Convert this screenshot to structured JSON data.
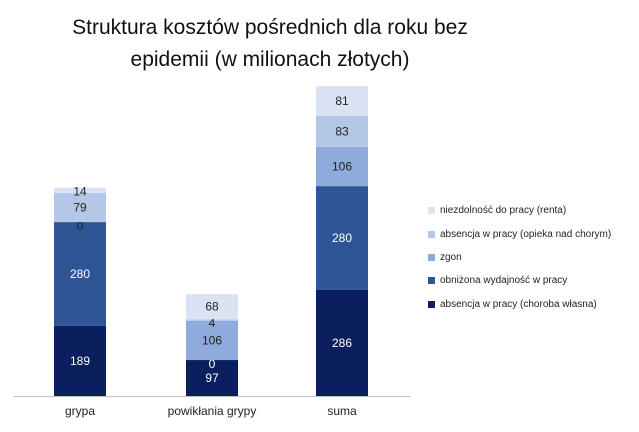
{
  "chart_data": {
    "type": "bar",
    "stacked": true,
    "title": [
      "Struktura kosztów pośrednich dla roku bez",
      "epidemii (w milionach złotych)"
    ],
    "categories": [
      "grypa",
      "powikłania grypy",
      "suma"
    ],
    "series": [
      {
        "name": "absencja w pracy (choroba własna)",
        "color": "#0b1f5e",
        "label_color": "#ffffff",
        "values": [
          189,
          97,
          286
        ]
      },
      {
        "name": "obniżona wydajność w pracy",
        "color": "#2f5597",
        "label_color": "#ffffff",
        "values": [
          280,
          0,
          280
        ]
      },
      {
        "name": "zgon",
        "color": "#8faadc",
        "label_color": "#222222",
        "values": [
          0,
          106,
          106
        ]
      },
      {
        "name": "absencja w pracy (opieka nad chorym)",
        "color": "#b4c7e7",
        "label_color": "#222222",
        "values": [
          79,
          4,
          83
        ]
      },
      {
        "name": "niezdolność do pracy (renta)",
        "color": "#dae3f3",
        "label_color": "#222222",
        "values": [
          14,
          68,
          81
        ]
      }
    ],
    "ylim": [
      0,
      836
    ],
    "grid": false,
    "legend_position": "right",
    "legend_order": "reverse"
  }
}
